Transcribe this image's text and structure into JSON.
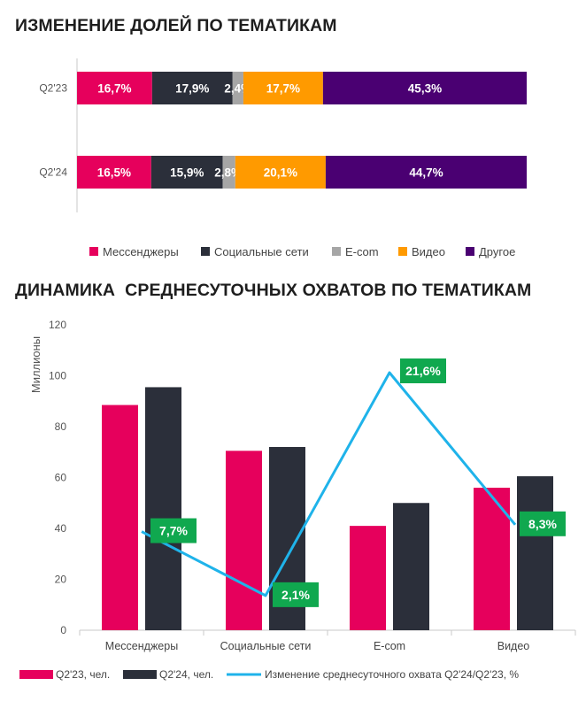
{
  "chart_data": [
    {
      "type": "bar",
      "stacked": true,
      "orientation": "horizontal",
      "title": "ИЗМЕНЕНИЕ ДОЛЕЙ ПО ТЕМАТИКАМ",
      "categories": [
        "Q2'23",
        "Q2'24"
      ],
      "series": [
        {
          "name": "Мессенджеры",
          "color": "#e6005c",
          "values": [
            16.7,
            16.5
          ],
          "labels": [
            "16,7%",
            "16,5%"
          ]
        },
        {
          "name": "Социальные сети",
          "color": "#2b2f3a",
          "values": [
            17.9,
            15.9
          ],
          "labels": [
            "17,9%",
            "15,9%"
          ]
        },
        {
          "name": "E-com",
          "color": "#a6a6a6",
          "values": [
            2.4,
            2.8
          ],
          "labels": [
            "2,4%",
            "2,8%"
          ]
        },
        {
          "name": "Видео",
          "color": "#ff9a00",
          "values": [
            17.7,
            20.1
          ],
          "labels": [
            "17,7%",
            "20,1%"
          ]
        },
        {
          "name": "Другое",
          "color": "#4a0072",
          "values": [
            45.3,
            44.7
          ],
          "labels": [
            "45,3%",
            "44,7%"
          ]
        }
      ],
      "legend_position": "bottom"
    },
    {
      "type": "bar",
      "title": "ДИНАМИКА  СРЕДНЕСУТОЧНЫХ ОХВАТОВ ПО ТЕМАТИКАМ",
      "categories": [
        "Мессенджеры",
        "Социальные сети",
        "E-com",
        "Видео"
      ],
      "ylabel": "Миллионы",
      "ylim": [
        0,
        120
      ],
      "yticks": [
        0,
        20,
        40,
        60,
        80,
        100,
        120
      ],
      "series": [
        {
          "name": "Q2'23, чел.",
          "type": "bar",
          "color": "#e6005c",
          "values": [
            88.5,
            70.5,
            41.0,
            56.0
          ]
        },
        {
          "name": "Q2'24, чел.",
          "type": "bar",
          "color": "#2b2f3a",
          "values": [
            95.5,
            72.0,
            50.0,
            60.5
          ]
        },
        {
          "name": "Изменение среднесуточного охвата Q2'24/Q2'23, %",
          "type": "line",
          "color": "#1fb3ea",
          "values": [
            7.7,
            2.1,
            21.6,
            8.3
          ],
          "labels": [
            "7,7%",
            "2,1%",
            "21,6%",
            "8,3%"
          ]
        }
      ],
      "legend_position": "bottom"
    }
  ]
}
